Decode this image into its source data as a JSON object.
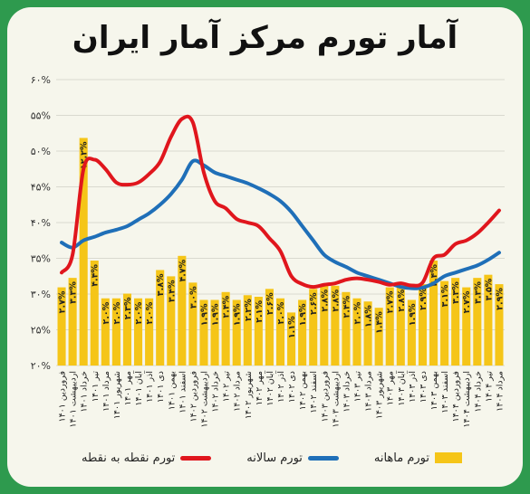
{
  "title": "آمار تورم مرکز آمار ایران",
  "colors": {
    "monthly": "#f5c518",
    "annual": "#1f6fb8",
    "point": "#e0161d",
    "background": "#2e9a4e"
  },
  "legend": {
    "point": "تورم نقطه به نقطه",
    "annual": "تورم سالانه",
    "monthly": "تورم ماهانه"
  },
  "chart_data": {
    "type": "bar",
    "ylim": [
      20,
      60
    ],
    "yticks": [
      "۲۰%",
      "۲۵%",
      "۳۰%",
      "۳۵%",
      "۴۰%",
      "۴۵%",
      "۵۰%",
      "۵۵%",
      "۶۰%"
    ],
    "categories": [
      "فروردین ۱۴۰۱",
      "اردیبهشت ۱۴۰۱",
      "خرداد ۱۴۰۱",
      "تیر ۱۴۰۱",
      "مرداد ۱۴۰۱",
      "شهریور ۱۴۰۱",
      "مهر ۱۴۰۱",
      "آبان ۱۴۰۱",
      "آذر ۱۴۰۱",
      "دی ۱۴۰۱",
      "بهمن ۱۴۰۱",
      "اسفند ۱۴۰۱",
      "فروردین ۱۴۰۲",
      "اردیبهشت ۱۴۰۲",
      "خرداد ۱۴۰۲",
      "تیر ۱۴۰۲",
      "مرداد ۱۴۰۲",
      "شهریور ۱۴۰۲",
      "مهر ۱۴۰۲",
      "آبان ۱۴۰۲",
      "آذر ۱۴۰۲",
      "دی ۱۴۰۲",
      "بهمن ۱۴۰۲",
      "اسفند ۱۴۰۲",
      "فروردین ۱۴۰۳",
      "اردیبهشت ۱۴۰۳",
      "خرداد ۱۴۰۳",
      "تیر ۱۴۰۳",
      "مرداد ۱۴۰۳",
      "شهریور ۱۴۰۳",
      "مهر ۱۴۰۳",
      "آبان ۱۴۰۳",
      "آذر ۱۴۰۳",
      "دی ۱۴۰۳",
      "بهمن ۱۴۰۳",
      "اسفند ۱۴۰۳",
      "فروردین ۱۴۰۴",
      "اردیبهشت ۱۴۰۴",
      "خرداد ۱۴۰۴",
      "تیر ۱۴۰۴",
      "مرداد ۱۴۰۴"
    ],
    "series": [
      {
        "name": "تورم ماهانه",
        "type": "bar",
        "values": [
          2.7,
          3.3,
          12.2,
          4.4,
          2.0,
          2.0,
          2.3,
          2.0,
          2.0,
          3.8,
          3.4,
          4.7,
          3.0,
          1.9,
          1.9,
          2.4,
          1.9,
          2.2,
          2.1,
          2.6,
          2.0,
          1.1,
          1.9,
          2.6,
          2.8,
          2.8,
          2.4,
          2.0,
          1.8,
          1.4,
          2.7,
          2.8,
          1.9,
          2.9,
          4.4,
          3.1,
          3.3,
          2.7,
          3.3,
          3.5,
          2.9
        ],
        "labels": [
          "۲.۷%",
          "۳.۳%",
          "۱۲.۲%",
          "۴.۴%",
          "۲.۰%",
          "۲.۰%",
          "۲.۳%",
          "۲.۰%",
          "۲.۰%",
          "۳.۸%",
          "۳.۴%",
          "۴.۷%",
          "۳.۰%",
          "۱.۹%",
          "۱.۹%",
          "۲.۴%",
          "۱.۹%",
          "۲.۲%",
          "۲.۱%",
          "۲.۶%",
          "۲.۰%",
          "۱.۱%",
          "۱.۹%",
          "۲.۶%",
          "۲.۸%",
          "۲.۸%",
          "۲.۴%",
          "۲.۰%",
          "۱.۸%",
          "۱.۴%",
          "۲.۷%",
          "۲.۸%",
          "۱.۹%",
          "۲.۹%",
          "۴.۴%",
          "۳.۱%",
          "۳.۳%",
          "۲.۷%",
          "۳.۳%",
          "۳.۵%",
          "۲.۹%"
        ]
      },
      {
        "name": "تورم سالانه",
        "type": "line",
        "values": [
          37.2,
          36.5,
          37.5,
          38.0,
          38.6,
          39.0,
          39.5,
          40.4,
          41.3,
          42.5,
          44.0,
          46.0,
          48.6,
          48.0,
          47.0,
          46.5,
          46.0,
          45.5,
          44.8,
          44.0,
          43.0,
          41.5,
          39.5,
          37.5,
          35.5,
          34.5,
          33.8,
          33.0,
          32.5,
          32.0,
          31.5,
          31.0,
          30.8,
          30.9,
          31.5,
          32.5,
          33.0,
          33.5,
          34.0,
          34.8,
          35.8
        ]
      },
      {
        "name": "تورم نقطه به نقطه",
        "type": "line",
        "values": [
          33.0,
          35.5,
          47.5,
          48.8,
          47.5,
          45.6,
          45.3,
          45.6,
          46.8,
          48.5,
          52.0,
          54.5,
          54.0,
          47.0,
          43.0,
          42.0,
          40.5,
          40.0,
          39.5,
          37.8,
          36.0,
          32.5,
          31.4,
          31.0,
          31.3,
          31.5,
          32.0,
          32.2,
          32.0,
          31.7,
          31.3,
          31.5,
          31.2,
          31.6,
          35.0,
          35.5,
          37.0,
          37.5,
          38.5,
          40.0,
          41.7
        ]
      }
    ]
  }
}
